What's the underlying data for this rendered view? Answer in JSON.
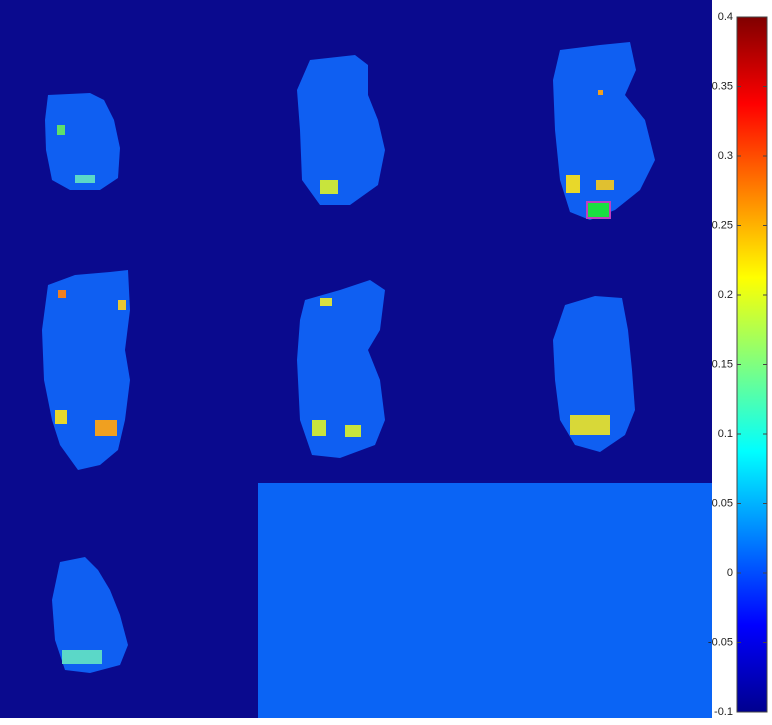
{
  "colorbar": {
    "lim": [
      -0.1,
      0.4
    ],
    "ticks": [
      0.4,
      0.35,
      0.3,
      0.25,
      0.2,
      0.15,
      0.1,
      0.05,
      0,
      -0.05,
      -0.1
    ]
  }
}
